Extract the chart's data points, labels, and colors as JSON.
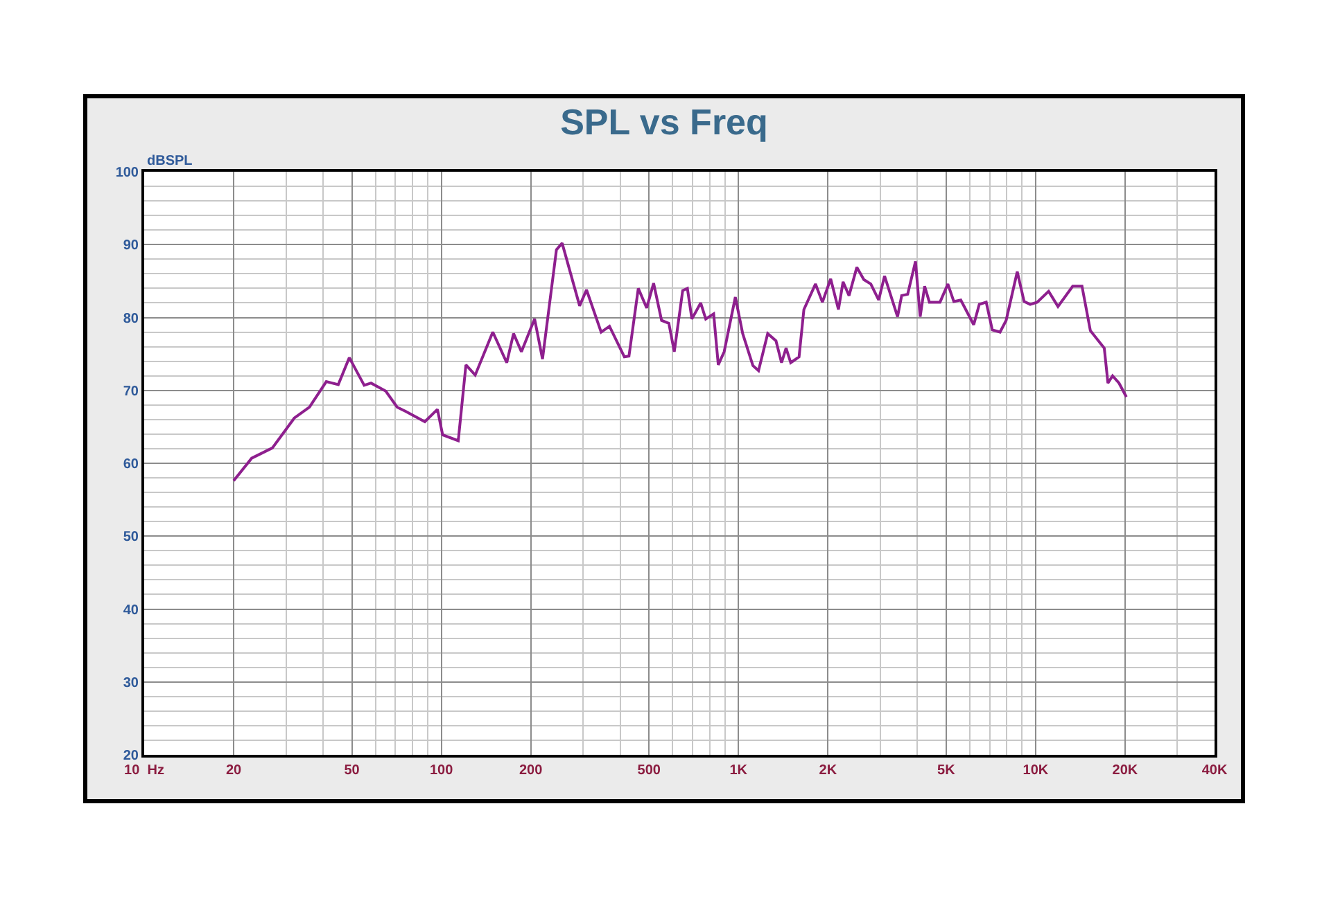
{
  "chart_data": {
    "type": "line",
    "title": "SPL vs Freq",
    "ylabel": "dBSPL",
    "log": "x",
    "grid": true,
    "marker": "none",
    "line_style": "solid",
    "xlim": [
      10,
      40000
    ],
    "ylim": [
      20,
      100
    ],
    "xticks": [
      {
        "value": 10,
        "label": "10  Hz"
      },
      20,
      {
        "value": 30,
        "label": null
      },
      {
        "value": 40,
        "label": null
      },
      50,
      {
        "value": 60,
        "label": null
      },
      {
        "value": 70,
        "label": null
      },
      {
        "value": 80,
        "label": null
      },
      {
        "value": 90,
        "label": null
      },
      100,
      200,
      {
        "value": 300,
        "label": null
      },
      {
        "value": 400,
        "label": null
      },
      500,
      {
        "value": 600,
        "label": null
      },
      {
        "value": 700,
        "label": null
      },
      {
        "value": 800,
        "label": null
      },
      {
        "value": 900,
        "label": null
      },
      {
        "value": 1000,
        "label": "1K"
      },
      {
        "value": 2000,
        "label": "2K"
      },
      {
        "value": 3000,
        "label": null
      },
      {
        "value": 4000,
        "label": null
      },
      {
        "value": 5000,
        "label": "5K"
      },
      {
        "value": 6000,
        "label": null
      },
      {
        "value": 7000,
        "label": null
      },
      {
        "value": 8000,
        "label": null
      },
      {
        "value": 9000,
        "label": null
      },
      {
        "value": 10000,
        "label": "10K"
      },
      {
        "value": 20000,
        "label": "20K"
      },
      {
        "value": 30000,
        "label": null
      },
      {
        "value": 40000,
        "label": "40K"
      }
    ],
    "yticks": [
      20,
      {
        "value": 22,
        "label": null
      },
      {
        "value": 24,
        "label": null
      },
      {
        "value": 26,
        "label": null
      },
      {
        "value": 28,
        "label": null
      },
      30,
      {
        "value": 32,
        "label": null
      },
      {
        "value": 34,
        "label": null
      },
      {
        "value": 36,
        "label": null
      },
      {
        "value": 38,
        "label": null
      },
      40,
      {
        "value": 42,
        "label": null
      },
      {
        "value": 44,
        "label": null
      },
      {
        "value": 46,
        "label": null
      },
      {
        "value": 48,
        "label": null
      },
      50,
      {
        "value": 52,
        "label": null
      },
      {
        "value": 54,
        "label": null
      },
      {
        "value": 56,
        "label": null
      },
      {
        "value": 58,
        "label": null
      },
      60,
      {
        "value": 62,
        "label": null
      },
      {
        "value": 64,
        "label": null
      },
      {
        "value": 66,
        "label": null
      },
      {
        "value": 68,
        "label": null
      },
      70,
      {
        "value": 72,
        "label": null
      },
      {
        "value": 74,
        "label": null
      },
      {
        "value": 76,
        "label": null
      },
      {
        "value": 78,
        "label": null
      },
      80,
      {
        "value": 82,
        "label": null
      },
      {
        "value": 84,
        "label": null
      },
      {
        "value": 86,
        "label": null
      },
      {
        "value": 88,
        "label": null
      },
      90,
      {
        "value": 92,
        "label": null
      },
      {
        "value": 94,
        "label": null
      },
      {
        "value": 96,
        "label": null
      },
      {
        "value": 98,
        "label": null
      },
      100
    ],
    "series": [
      {
        "color": "#8e1f8e",
        "x": [
          20,
          23,
          27,
          32,
          36,
          41,
          45,
          49,
          55,
          58,
          65,
          71,
          76,
          88,
          97,
          101,
          114,
          121,
          130,
          149,
          166,
          175,
          186,
          206,
          219,
          244,
          255,
          292,
          308,
          345,
          368,
          413,
          428,
          460,
          491,
          518,
          551,
          583,
          608,
          649,
          673,
          697,
          746,
          776,
          825,
          855,
          895,
          976,
          1033,
          1118,
          1168,
          1254,
          1337,
          1396,
          1446,
          1499,
          1599,
          1660,
          1816,
          1916,
          2043,
          2170,
          2249,
          2355,
          2502,
          2641,
          2788,
          2963,
          3102,
          3430,
          3541,
          3710,
          3942,
          4087,
          4232,
          4389,
          4766,
          5065,
          5305,
          5599,
          6189,
          6461,
          6818,
          7148,
          7590,
          7956,
          8673,
          9146,
          9586,
          10120,
          11060,
          11890,
          13330,
          14320,
          15280,
          17020,
          17510,
          18150,
          19080,
          20200
        ],
        "values": [
          57.6,
          60.7,
          62.1,
          66.2,
          67.7,
          71.2,
          70.8,
          74.5,
          70.7,
          71.0,
          69.9,
          67.7,
          67.1,
          65.7,
          67.4,
          63.9,
          63.1,
          73.5,
          72.1,
          78.0,
          73.8,
          77.8,
          75.3,
          79.8,
          74.3,
          89.3,
          90.2,
          81.6,
          83.8,
          78.0,
          78.8,
          74.6,
          74.7,
          84.0,
          81.3,
          84.7,
          79.6,
          79.2,
          75.3,
          83.7,
          84.0,
          79.8,
          82.0,
          79.8,
          80.5,
          73.5,
          75.3,
          82.8,
          77.8,
          73.4,
          72.7,
          77.8,
          76.8,
          73.8,
          75.8,
          73.8,
          74.6,
          81.1,
          84.6,
          82.1,
          85.3,
          81.1,
          84.9,
          83.0,
          86.9,
          85.2,
          84.6,
          82.4,
          85.7,
          80.1,
          83.0,
          83.2,
          87.7,
          80.1,
          84.3,
          82.1,
          82.1,
          84.6,
          82.2,
          82.4,
          79.0,
          81.8,
          82.1,
          78.3,
          78.0,
          79.6,
          86.3,
          82.2,
          81.8,
          82.1,
          83.6,
          81.5,
          84.3,
          84.3,
          78.2,
          75.8,
          71.0,
          72.0,
          71.0,
          69.1
        ]
      }
    ]
  }
}
